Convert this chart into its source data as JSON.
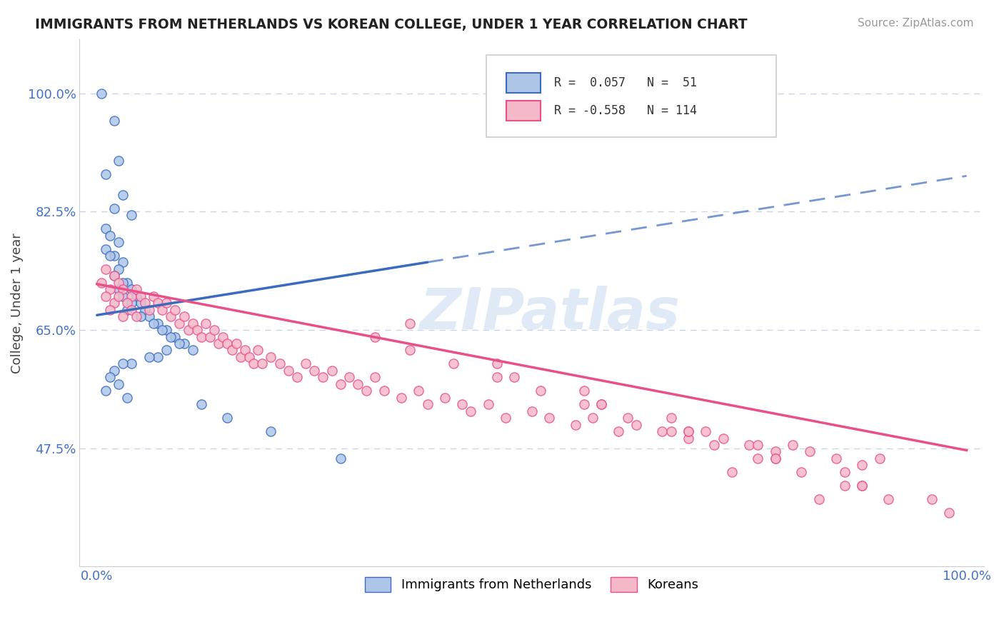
{
  "title": "IMMIGRANTS FROM NETHERLANDS VS KOREAN COLLEGE, UNDER 1 YEAR CORRELATION CHART",
  "source": "Source: ZipAtlas.com",
  "ylabel": "College, Under 1 year",
  "xlim": [
    -0.02,
    1.02
  ],
  "ylim": [
    0.3,
    1.08
  ],
  "yticks": [
    0.475,
    0.65,
    0.825,
    1.0
  ],
  "ytick_labels": [
    "47.5%",
    "65.0%",
    "82.5%",
    "100.0%"
  ],
  "xticks": [
    0.0,
    1.0
  ],
  "xtick_labels": [
    "0.0%",
    "100.0%"
  ],
  "color_blue": "#adc6e8",
  "color_pink": "#f5b8c8",
  "line_blue": "#3a6bbf",
  "line_pink": "#e8508a",
  "axis_label_color": "#4472c4",
  "blue_line_x0": 0.0,
  "blue_line_y0": 0.672,
  "blue_line_x1": 1.0,
  "blue_line_y1": 0.878,
  "blue_line_solid_end": 0.38,
  "pink_line_x0": 0.0,
  "pink_line_y0": 0.718,
  "pink_line_x1": 1.0,
  "pink_line_y1": 0.472,
  "blue_points_x": [
    0.005,
    0.02,
    0.025,
    0.01,
    0.03,
    0.02,
    0.04,
    0.01,
    0.015,
    0.025,
    0.01,
    0.02,
    0.015,
    0.03,
    0.025,
    0.02,
    0.035,
    0.03,
    0.025,
    0.04,
    0.045,
    0.03,
    0.05,
    0.04,
    0.035,
    0.055,
    0.06,
    0.05,
    0.07,
    0.065,
    0.08,
    0.075,
    0.09,
    0.085,
    0.1,
    0.095,
    0.11,
    0.08,
    0.07,
    0.06,
    0.04,
    0.03,
    0.02,
    0.015,
    0.025,
    0.01,
    0.035,
    0.12,
    0.15,
    0.2,
    0.28
  ],
  "blue_points_y": [
    1.0,
    0.96,
    0.9,
    0.88,
    0.85,
    0.83,
    0.82,
    0.8,
    0.79,
    0.78,
    0.77,
    0.76,
    0.76,
    0.75,
    0.74,
    0.73,
    0.72,
    0.72,
    0.71,
    0.71,
    0.7,
    0.7,
    0.69,
    0.69,
    0.68,
    0.68,
    0.67,
    0.67,
    0.66,
    0.66,
    0.65,
    0.65,
    0.64,
    0.64,
    0.63,
    0.63,
    0.62,
    0.62,
    0.61,
    0.61,
    0.6,
    0.6,
    0.59,
    0.58,
    0.57,
    0.56,
    0.55,
    0.54,
    0.52,
    0.5,
    0.46
  ],
  "pink_points_x": [
    0.005,
    0.01,
    0.015,
    0.02,
    0.01,
    0.025,
    0.02,
    0.03,
    0.025,
    0.015,
    0.04,
    0.035,
    0.045,
    0.03,
    0.05,
    0.04,
    0.055,
    0.045,
    0.06,
    0.065,
    0.07,
    0.075,
    0.08,
    0.085,
    0.09,
    0.095,
    0.1,
    0.105,
    0.11,
    0.115,
    0.12,
    0.125,
    0.13,
    0.135,
    0.14,
    0.145,
    0.15,
    0.155,
    0.16,
    0.165,
    0.17,
    0.175,
    0.18,
    0.185,
    0.19,
    0.2,
    0.21,
    0.22,
    0.23,
    0.24,
    0.25,
    0.26,
    0.27,
    0.28,
    0.29,
    0.3,
    0.31,
    0.32,
    0.33,
    0.35,
    0.37,
    0.38,
    0.4,
    0.42,
    0.43,
    0.45,
    0.47,
    0.5,
    0.52,
    0.55,
    0.57,
    0.6,
    0.62,
    0.65,
    0.68,
    0.7,
    0.72,
    0.75,
    0.78,
    0.8,
    0.82,
    0.85,
    0.88,
    0.9,
    0.32,
    0.36,
    0.41,
    0.46,
    0.51,
    0.56,
    0.61,
    0.66,
    0.71,
    0.76,
    0.81,
    0.86,
    0.91,
    0.36,
    0.46,
    0.56,
    0.66,
    0.76,
    0.86,
    0.96,
    0.48,
    0.58,
    0.68,
    0.78,
    0.88,
    0.58,
    0.68,
    0.78,
    0.88,
    0.98,
    0.73,
    0.83
  ],
  "pink_points_y": [
    0.72,
    0.74,
    0.71,
    0.73,
    0.7,
    0.72,
    0.69,
    0.71,
    0.7,
    0.68,
    0.7,
    0.69,
    0.71,
    0.67,
    0.7,
    0.68,
    0.69,
    0.67,
    0.68,
    0.7,
    0.69,
    0.68,
    0.69,
    0.67,
    0.68,
    0.66,
    0.67,
    0.65,
    0.66,
    0.65,
    0.64,
    0.66,
    0.64,
    0.65,
    0.63,
    0.64,
    0.63,
    0.62,
    0.63,
    0.61,
    0.62,
    0.61,
    0.6,
    0.62,
    0.6,
    0.61,
    0.6,
    0.59,
    0.58,
    0.6,
    0.59,
    0.58,
    0.59,
    0.57,
    0.58,
    0.57,
    0.56,
    0.58,
    0.56,
    0.55,
    0.56,
    0.54,
    0.55,
    0.54,
    0.53,
    0.54,
    0.52,
    0.53,
    0.52,
    0.51,
    0.52,
    0.5,
    0.51,
    0.5,
    0.49,
    0.5,
    0.49,
    0.48,
    0.47,
    0.48,
    0.47,
    0.46,
    0.45,
    0.46,
    0.64,
    0.62,
    0.6,
    0.58,
    0.56,
    0.54,
    0.52,
    0.5,
    0.48,
    0.46,
    0.44,
    0.42,
    0.4,
    0.66,
    0.6,
    0.56,
    0.52,
    0.48,
    0.44,
    0.4,
    0.58,
    0.54,
    0.5,
    0.46,
    0.42,
    0.54,
    0.5,
    0.46,
    0.42,
    0.38,
    0.44,
    0.4
  ]
}
